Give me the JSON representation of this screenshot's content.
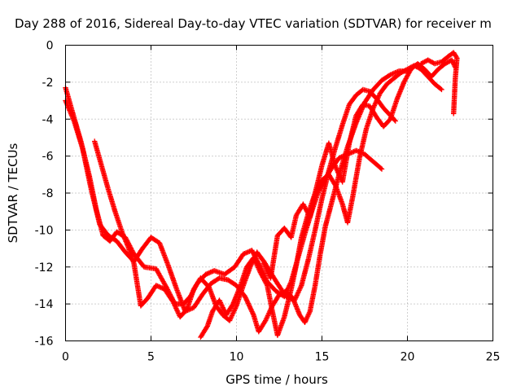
{
  "chart_data": {
    "type": "scatter",
    "title": "Day 288 of 2016, Sidereal Day-to-day VTEC variation (SDTVAR) for receiver m",
    "xlabel": "GPS time / hours",
    "ylabel": "SDTVAR / TECUs",
    "xlim": [
      0,
      25
    ],
    "ylim": [
      -16,
      0
    ],
    "xticks": [
      "0",
      "5",
      "10",
      "15",
      "20",
      "25"
    ],
    "yticks": [
      "0",
      "-2",
      "-4",
      "-6",
      "-8",
      "-10",
      "-12",
      "-14",
      "-16"
    ],
    "grid": true,
    "legend": "none",
    "marker": "plus",
    "color": "#ff0000",
    "series": [
      {
        "points": [
          [
            0.0,
            -2.3
          ],
          [
            0.4,
            -3.6
          ],
          [
            0.9,
            -5.2
          ],
          [
            1.4,
            -7.1
          ],
          [
            1.8,
            -8.9
          ],
          [
            2.2,
            -10.3
          ],
          [
            2.6,
            -10.6
          ],
          [
            3.0,
            -10.1
          ],
          [
            3.5,
            -10.4
          ],
          [
            4.0,
            -11.3
          ],
          [
            4.6,
            -12.0
          ],
          [
            5.3,
            -12.1
          ],
          [
            5.9,
            -13.1
          ],
          [
            6.4,
            -14.0
          ],
          [
            6.9,
            -14.0
          ],
          [
            7.3,
            -13.6
          ],
          [
            7.7,
            -12.9
          ],
          [
            8.2,
            -12.4
          ],
          [
            8.7,
            -12.2
          ],
          [
            9.3,
            -12.4
          ],
          [
            9.9,
            -12.0
          ],
          [
            10.4,
            -11.3
          ],
          [
            10.9,
            -11.1
          ],
          [
            11.4,
            -12.0
          ],
          [
            11.8,
            -12.8
          ],
          [
            12.3,
            -13.3
          ],
          [
            12.8,
            -13.6
          ],
          [
            13.2,
            -12.8
          ],
          [
            13.6,
            -11.5
          ],
          [
            14.0,
            -10.2
          ],
          [
            14.4,
            -9.0
          ],
          [
            14.8,
            -7.9
          ],
          [
            15.2,
            -7.2
          ],
          [
            15.6,
            -6.6
          ],
          [
            16.0,
            -6.1
          ],
          [
            16.5,
            -5.9
          ],
          [
            17.0,
            -5.7
          ],
          [
            17.5,
            -5.9
          ],
          [
            18.0,
            -6.3
          ],
          [
            18.5,
            -6.7
          ]
        ]
      },
      {
        "points": [
          [
            0.0,
            -3.0
          ],
          [
            0.5,
            -4.1
          ],
          [
            1.0,
            -5.6
          ],
          [
            1.5,
            -7.8
          ],
          [
            2.0,
            -9.7
          ],
          [
            2.5,
            -10.3
          ],
          [
            3.0,
            -10.6
          ],
          [
            3.5,
            -11.2
          ],
          [
            4.0,
            -11.7
          ],
          [
            4.5,
            -11.0
          ],
          [
            5.0,
            -10.4
          ],
          [
            5.5,
            -10.7
          ],
          [
            6.0,
            -11.9
          ],
          [
            6.5,
            -13.2
          ],
          [
            7.0,
            -14.4
          ],
          [
            7.5,
            -14.2
          ],
          [
            8.0,
            -13.5
          ],
          [
            8.5,
            -12.9
          ],
          [
            9.0,
            -12.6
          ],
          [
            9.5,
            -12.7
          ],
          [
            10.0,
            -13.0
          ],
          [
            10.5,
            -13.6
          ],
          [
            11.0,
            -14.6
          ],
          [
            11.3,
            -15.5
          ],
          [
            11.7,
            -14.9
          ],
          [
            12.1,
            -14.1
          ],
          [
            12.5,
            -13.5
          ],
          [
            12.9,
            -13.3
          ],
          [
            13.3,
            -13.7
          ],
          [
            13.7,
            -14.6
          ],
          [
            14.0,
            -15.0
          ],
          [
            14.3,
            -14.4
          ],
          [
            14.6,
            -13.0
          ],
          [
            14.9,
            -11.3
          ],
          [
            15.2,
            -9.8
          ],
          [
            15.6,
            -8.4
          ],
          [
            16.0,
            -7.0
          ],
          [
            16.5,
            -5.5
          ],
          [
            17.0,
            -4.2
          ],
          [
            17.5,
            -3.1
          ],
          [
            18.0,
            -2.4
          ],
          [
            18.5,
            -1.9
          ],
          [
            19.0,
            -1.6
          ],
          [
            19.5,
            -1.4
          ],
          [
            20.0,
            -1.4
          ]
        ]
      },
      {
        "points": [
          [
            1.7,
            -5.2
          ],
          [
            2.1,
            -6.5
          ],
          [
            2.5,
            -7.8
          ],
          [
            2.9,
            -9.0
          ],
          [
            3.3,
            -10.1
          ],
          [
            3.7,
            -11.0
          ],
          [
            4.0,
            -11.8
          ],
          [
            4.4,
            -14.1
          ],
          [
            4.8,
            -13.7
          ],
          [
            5.3,
            -13.0
          ],
          [
            5.8,
            -13.2
          ],
          [
            6.3,
            -13.9
          ],
          [
            6.7,
            -14.7
          ],
          [
            7.1,
            -14.3
          ],
          [
            7.5,
            -13.2
          ],
          [
            7.9,
            -12.6
          ],
          [
            8.4,
            -13.1
          ],
          [
            8.8,
            -14.1
          ],
          [
            9.2,
            -14.6
          ],
          [
            9.6,
            -14.9
          ],
          [
            10.0,
            -14.1
          ],
          [
            10.4,
            -13.0
          ],
          [
            10.8,
            -12.0
          ],
          [
            11.2,
            -11.2
          ],
          [
            11.6,
            -11.7
          ],
          [
            12.0,
            -12.3
          ],
          [
            12.4,
            -12.9
          ],
          [
            12.9,
            -13.6
          ],
          [
            13.4,
            -13.8
          ],
          [
            13.8,
            -13.0
          ],
          [
            14.2,
            -11.6
          ],
          [
            14.6,
            -10.0
          ],
          [
            15.0,
            -8.3
          ],
          [
            15.4,
            -6.8
          ],
          [
            15.8,
            -5.5
          ],
          [
            16.2,
            -4.3
          ],
          [
            16.6,
            -3.2
          ],
          [
            17.0,
            -2.7
          ],
          [
            17.4,
            -2.4
          ],
          [
            17.8,
            -2.5
          ],
          [
            18.2,
            -2.9
          ],
          [
            18.6,
            -3.4
          ],
          [
            19.0,
            -3.8
          ],
          [
            19.3,
            -4.1
          ]
        ]
      },
      {
        "points": [
          [
            7.9,
            -15.8
          ],
          [
            8.3,
            -15.2
          ],
          [
            8.6,
            -14.4
          ],
          [
            9.0,
            -13.8
          ],
          [
            9.4,
            -14.6
          ],
          [
            9.8,
            -14.0
          ],
          [
            10.2,
            -13.1
          ],
          [
            10.6,
            -12.0
          ],
          [
            11.0,
            -11.5
          ],
          [
            11.4,
            -12.3
          ],
          [
            11.8,
            -13.0
          ],
          [
            12.1,
            -14.4
          ],
          [
            12.4,
            -15.7
          ],
          [
            12.8,
            -14.7
          ],
          [
            13.2,
            -13.2
          ],
          [
            13.5,
            -11.9
          ],
          [
            13.8,
            -10.4
          ],
          [
            14.2,
            -9.1
          ],
          [
            14.6,
            -8.0
          ],
          [
            15.0,
            -7.3
          ],
          [
            15.4,
            -7.0
          ],
          [
            15.8,
            -7.6
          ],
          [
            16.2,
            -8.6
          ],
          [
            16.5,
            -9.6
          ],
          [
            16.8,
            -8.2
          ],
          [
            17.2,
            -6.1
          ],
          [
            17.6,
            -4.5
          ],
          [
            18.0,
            -3.4
          ],
          [
            18.4,
            -2.6
          ],
          [
            18.8,
            -2.1
          ],
          [
            19.2,
            -1.8
          ],
          [
            19.6,
            -1.5
          ],
          [
            20.0,
            -1.3
          ],
          [
            20.4,
            -1.1
          ],
          [
            20.8,
            -1.3
          ],
          [
            21.2,
            -1.7
          ],
          [
            21.6,
            -2.1
          ],
          [
            22.0,
            -2.4
          ]
        ]
      },
      {
        "points": [
          [
            11.6,
            -11.8
          ],
          [
            12.0,
            -12.6
          ],
          [
            12.4,
            -10.3
          ],
          [
            12.8,
            -9.9
          ],
          [
            13.2,
            -10.4
          ],
          [
            13.5,
            -9.2
          ],
          [
            13.9,
            -8.6
          ],
          [
            14.3,
            -9.3
          ],
          [
            14.6,
            -8.0
          ],
          [
            15.0,
            -6.5
          ],
          [
            15.4,
            -5.3
          ],
          [
            15.8,
            -6.6
          ],
          [
            16.2,
            -7.4
          ],
          [
            16.6,
            -5.3
          ],
          [
            17.0,
            -3.8
          ],
          [
            17.4,
            -3.2
          ],
          [
            17.8,
            -3.3
          ],
          [
            18.2,
            -3.9
          ],
          [
            18.6,
            -4.4
          ],
          [
            19.0,
            -4.0
          ],
          [
            19.4,
            -2.9
          ],
          [
            19.8,
            -2.0
          ],
          [
            20.2,
            -1.3
          ],
          [
            20.6,
            -1.0
          ],
          [
            21.0,
            -1.3
          ],
          [
            21.4,
            -1.7
          ],
          [
            21.8,
            -1.3
          ],
          [
            22.2,
            -1.0
          ],
          [
            22.6,
            -0.8
          ],
          [
            22.8,
            -1.2
          ]
        ]
      },
      {
        "points": [
          [
            20.8,
            -1.0
          ],
          [
            21.2,
            -0.8
          ],
          [
            21.6,
            -1.0
          ],
          [
            22.0,
            -0.9
          ],
          [
            22.4,
            -0.6
          ],
          [
            22.7,
            -0.4
          ],
          [
            22.9,
            -0.7
          ],
          [
            22.8,
            -1.8
          ],
          [
            22.7,
            -3.7
          ]
        ]
      }
    ]
  }
}
